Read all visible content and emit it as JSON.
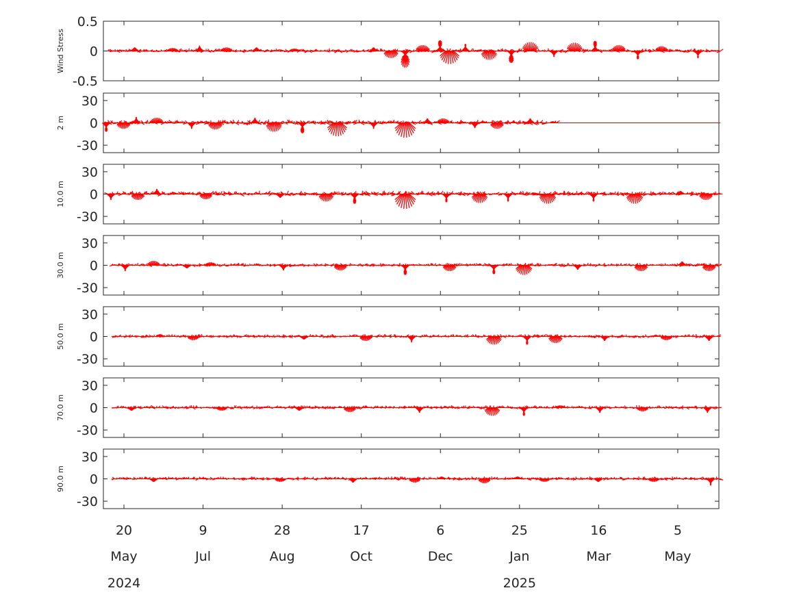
{
  "chart_data": {
    "type": "vector stick plot",
    "color": "#ff0000",
    "x_start": "2024-05-07",
    "x_end": "2025-05-31",
    "x_ticks": [
      {
        "date": "2024-05-20",
        "day": "20",
        "month": "May",
        "year": "2024"
      },
      {
        "date": "2024-07-09",
        "day": "9",
        "month": "Jul",
        "year": ""
      },
      {
        "date": "2024-08-28",
        "day": "28",
        "month": "Aug",
        "year": ""
      },
      {
        "date": "2024-10-17",
        "day": "17",
        "month": "Oct",
        "year": ""
      },
      {
        "date": "2024-12-06",
        "day": "6",
        "month": "Dec",
        "year": ""
      },
      {
        "date": "2025-01-25",
        "day": "25",
        "month": "Jan",
        "year": "2025"
      },
      {
        "date": "2025-03-16",
        "day": "16",
        "month": "Mar",
        "year": ""
      },
      {
        "date": "2025-05-05",
        "day": "5",
        "month": "May",
        "year": ""
      }
    ],
    "panels": [
      {
        "label": "Wind Stress",
        "ylim": [
          -0.5,
          0.5
        ],
        "yticks": [
          0.5,
          0,
          -0.5
        ],
        "ytick_labels": [
          "0.5",
          "0",
          "-0.5"
        ],
        "data_start": "2024-05-10",
        "data_end": "2025-06-01",
        "events": [
          {
            "date": "2024-05-27",
            "v": 0.06
          },
          {
            "date": "2024-06-20",
            "v": 0.05
          },
          {
            "date": "2024-07-07",
            "v": 0.09
          },
          {
            "date": "2024-07-24",
            "v": 0.06
          },
          {
            "date": "2024-08-12",
            "v": 0.06
          },
          {
            "date": "2024-09-05",
            "v": 0.04
          },
          {
            "date": "2024-10-25",
            "v": 0.06
          },
          {
            "date": "2024-11-05",
            "v": -0.12
          },
          {
            "date": "2024-11-14",
            "v": -0.28
          },
          {
            "date": "2024-11-25",
            "v": 0.1
          },
          {
            "date": "2024-12-06",
            "v": 0.18
          },
          {
            "date": "2024-12-12",
            "v": -0.22
          },
          {
            "date": "2024-12-22",
            "v": 0.12
          },
          {
            "date": "2025-01-06",
            "v": -0.15
          },
          {
            "date": "2025-01-20",
            "v": -0.2
          },
          {
            "date": "2025-02-01",
            "v": 0.15
          },
          {
            "date": "2025-02-16",
            "v": -0.1
          },
          {
            "date": "2025-03-01",
            "v": 0.14
          },
          {
            "date": "2025-03-14",
            "v": 0.17
          },
          {
            "date": "2025-03-29",
            "v": 0.1
          },
          {
            "date": "2025-04-10",
            "v": -0.14
          },
          {
            "date": "2025-04-25",
            "v": 0.08
          },
          {
            "date": "2025-05-18",
            "v": -0.12
          }
        ]
      },
      {
        "label": "2 m",
        "ylim": [
          -40,
          40
        ],
        "yticks": [
          30,
          0,
          -30
        ],
        "ytick_labels": [
          "30",
          "0",
          "-30"
        ],
        "data_start": "2024-05-07",
        "data_end": "2025-06-01",
        "active_end": "2025-02-18",
        "events": [
          {
            "date": "2024-05-09",
            "v": -12
          },
          {
            "date": "2024-05-20",
            "v": -8
          },
          {
            "date": "2024-05-28",
            "v": 8
          },
          {
            "date": "2024-06-10",
            "v": 7
          },
          {
            "date": "2024-07-02",
            "v": -8
          },
          {
            "date": "2024-07-17",
            "v": -9
          },
          {
            "date": "2024-08-11",
            "v": 7
          },
          {
            "date": "2024-08-23",
            "v": -12
          },
          {
            "date": "2024-09-10",
            "v": -14
          },
          {
            "date": "2024-10-02",
            "v": -18
          },
          {
            "date": "2024-10-25",
            "v": -8
          },
          {
            "date": "2024-11-14",
            "v": -20
          },
          {
            "date": "2024-11-28",
            "v": 6
          },
          {
            "date": "2024-12-08",
            "v": 6
          },
          {
            "date": "2024-12-28",
            "v": -7
          },
          {
            "date": "2025-01-11",
            "v": -8
          },
          {
            "date": "2025-02-01",
            "v": 6
          }
        ]
      },
      {
        "label": "10.0 m",
        "ylim": [
          -40,
          40
        ],
        "yticks": [
          30,
          0,
          -30
        ],
        "ytick_labels": [
          "30",
          "0",
          "-30"
        ],
        "data_start": "2024-05-10",
        "data_end": "2025-06-01",
        "events": [
          {
            "date": "2024-05-12",
            "v": -8
          },
          {
            "date": "2024-05-29",
            "v": -8
          },
          {
            "date": "2024-06-10",
            "v": 7
          },
          {
            "date": "2024-07-11",
            "v": -7
          },
          {
            "date": "2024-08-27",
            "v": -5
          },
          {
            "date": "2024-09-25",
            "v": -10
          },
          {
            "date": "2024-10-13",
            "v": -13
          },
          {
            "date": "2024-11-14",
            "v": -20
          },
          {
            "date": "2024-12-10",
            "v": -11
          },
          {
            "date": "2024-12-31",
            "v": -12
          },
          {
            "date": "2025-01-18",
            "v": -10
          },
          {
            "date": "2025-02-12",
            "v": -13
          },
          {
            "date": "2025-03-13",
            "v": -10
          },
          {
            "date": "2025-04-08",
            "v": -13
          },
          {
            "date": "2025-05-07",
            "v": 4
          },
          {
            "date": "2025-05-23",
            "v": -8
          }
        ]
      },
      {
        "label": "30.0 m",
        "ylim": [
          -40,
          40
        ],
        "yticks": [
          30,
          0,
          -30
        ],
        "ytick_labels": [
          "30",
          "0",
          "-30"
        ],
        "data_start": "2024-05-12",
        "data_end": "2025-06-01",
        "events": [
          {
            "date": "2024-05-21",
            "v": -8
          },
          {
            "date": "2024-06-08",
            "v": 6
          },
          {
            "date": "2024-06-29",
            "v": -4
          },
          {
            "date": "2024-07-14",
            "v": 4
          },
          {
            "date": "2024-08-29",
            "v": -7
          },
          {
            "date": "2024-10-04",
            "v": -7
          },
          {
            "date": "2024-11-14",
            "v": -13
          },
          {
            "date": "2024-12-12",
            "v": -8
          },
          {
            "date": "2025-01-09",
            "v": -12
          },
          {
            "date": "2025-01-28",
            "v": -13
          },
          {
            "date": "2025-03-03",
            "v": -6
          },
          {
            "date": "2025-04-12",
            "v": -8
          },
          {
            "date": "2025-05-08",
            "v": 5
          },
          {
            "date": "2025-05-25",
            "v": -8
          }
        ]
      },
      {
        "label": "50.0 m",
        "ylim": [
          -40,
          40
        ],
        "yticks": [
          30,
          0,
          -30
        ],
        "ytick_labels": [
          "30",
          "0",
          "-30"
        ],
        "data_start": "2024-05-13",
        "data_end": "2025-06-01",
        "events": [
          {
            "date": "2024-06-12",
            "v": 3
          },
          {
            "date": "2024-07-03",
            "v": -5
          },
          {
            "date": "2024-09-11",
            "v": -4
          },
          {
            "date": "2024-10-20",
            "v": -6
          },
          {
            "date": "2024-11-18",
            "v": -8
          },
          {
            "date": "2025-01-09",
            "v": -11
          },
          {
            "date": "2025-01-30",
            "v": -11
          },
          {
            "date": "2025-02-17",
            "v": -9
          },
          {
            "date": "2025-03-20",
            "v": -6
          },
          {
            "date": "2025-04-28",
            "v": -5
          },
          {
            "date": "2025-05-25",
            "v": -6
          }
        ]
      },
      {
        "label": "70.0 m",
        "ylim": [
          -40,
          40
        ],
        "yticks": [
          30,
          0,
          -30
        ],
        "ytick_labels": [
          "30",
          "0",
          "-30"
        ],
        "data_start": "2024-05-13",
        "data_end": "2025-06-01",
        "events": [
          {
            "date": "2024-05-25",
            "v": -4
          },
          {
            "date": "2024-07-21",
            "v": -4
          },
          {
            "date": "2024-09-08",
            "v": -4
          },
          {
            "date": "2024-10-10",
            "v": -6
          },
          {
            "date": "2024-11-23",
            "v": -7
          },
          {
            "date": "2025-01-08",
            "v": -11
          },
          {
            "date": "2025-01-28",
            "v": -11
          },
          {
            "date": "2025-02-20",
            "v": 3
          },
          {
            "date": "2025-03-17",
            "v": -7
          },
          {
            "date": "2025-04-13",
            "v": -5
          },
          {
            "date": "2025-05-24",
            "v": -7
          }
        ]
      },
      {
        "label": "90.0 m",
        "ylim": [
          -40,
          40
        ],
        "yticks": [
          30,
          0,
          -30
        ],
        "ytick_labels": [
          "30",
          "0",
          "-30"
        ],
        "data_start": "2024-05-13",
        "data_end": "2025-06-01",
        "events": [
          {
            "date": "2024-06-08",
            "v": -4
          },
          {
            "date": "2024-08-27",
            "v": -4
          },
          {
            "date": "2024-10-12",
            "v": -5
          },
          {
            "date": "2024-11-20",
            "v": -5
          },
          {
            "date": "2024-12-07",
            "v": 3
          },
          {
            "date": "2025-01-03",
            "v": -6
          },
          {
            "date": "2025-01-24",
            "v": 3
          },
          {
            "date": "2025-02-10",
            "v": -4
          },
          {
            "date": "2025-03-16",
            "v": -4
          },
          {
            "date": "2025-04-20",
            "v": -4
          },
          {
            "date": "2025-05-26",
            "v": -9
          }
        ]
      }
    ]
  }
}
